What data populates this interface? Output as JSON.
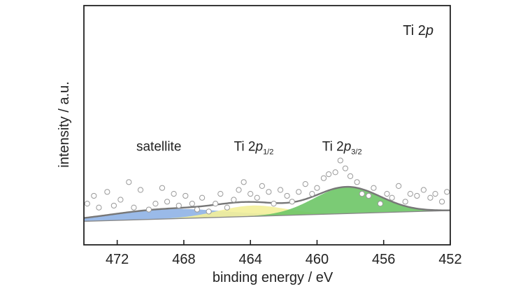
{
  "chart_data": {
    "type": "scatter",
    "title": "Ti 2p",
    "title_parts": {
      "main": "Ti 2",
      "italic": "p"
    },
    "xlabel": "binding energy / eV",
    "ylabel": "intensity / a.u.",
    "xlim": [
      474,
      452
    ],
    "x_reversed": true,
    "ylim": [
      -1.2,
      11
    ],
    "xticks": [
      472,
      468,
      464,
      460,
      456,
      452
    ],
    "annotations": [
      {
        "id": "satellite",
        "text": "satellite",
        "x": 469.5,
        "y": 3.6
      },
      {
        "id": "ti2p12",
        "main": "Ti 2",
        "italic": "p",
        "sub": "1/2",
        "x": 463.8,
        "y": 3.6
      },
      {
        "id": "ti2p32",
        "main": "Ti 2",
        "italic": "p",
        "sub": "3/2",
        "x": 458.5,
        "y": 3.6
      }
    ],
    "baseline": {
      "x": [
        474,
        452
      ],
      "y": [
        0,
        0.55
      ]
    },
    "components": [
      {
        "name": "satellite",
        "color": "#8fb3e6",
        "center": 469.0,
        "height": 0.5,
        "width": 3.4
      },
      {
        "name": "Ti 2p1/2",
        "color": "#f3ef99",
        "center": 463.9,
        "height": 0.55,
        "width": 2.0
      },
      {
        "name": "Ti 2p3/2",
        "color": "#6dc566",
        "center": 458.2,
        "height": 1.35,
        "width": 2.0
      }
    ],
    "envelope_color": "#777777",
    "points": {
      "x": [
        473.8,
        473.4,
        473.1,
        472.6,
        472.2,
        471.8,
        471.3,
        471.0,
        470.6,
        470.1,
        469.7,
        469.3,
        469.0,
        468.6,
        468.3,
        467.9,
        467.5,
        467.2,
        466.9,
        466.5,
        466.1,
        465.8,
        465.4,
        465.0,
        464.7,
        464.4,
        464.0,
        463.6,
        463.3,
        462.9,
        462.6,
        462.2,
        461.8,
        461.5,
        461.1,
        460.7,
        460.3,
        460.0,
        459.6,
        459.3,
        458.9,
        458.6,
        458.3,
        458.0,
        457.6,
        457.3,
        456.9,
        456.6,
        456.2,
        455.8,
        455.5,
        455.1,
        454.7,
        454.4,
        454.0,
        453.6,
        453.2,
        452.9,
        452.5,
        452.2
      ],
      "y": [
        0.9,
        1.3,
        0.7,
        1.5,
        0.8,
        1.1,
        2.0,
        0.7,
        1.6,
        0.6,
        0.9,
        1.7,
        1.0,
        1.4,
        0.8,
        1.3,
        0.9,
        0.6,
        1.2,
        0.5,
        0.9,
        1.4,
        0.7,
        1.1,
        1.6,
        2.0,
        1.4,
        1.2,
        1.8,
        1.5,
        0.9,
        1.6,
        1.3,
        1.0,
        1.5,
        1.9,
        1.4,
        1.7,
        2.2,
        2.4,
        2.5,
        3.1,
        2.7,
        2.3,
        2.0,
        1.4,
        1.3,
        1.7,
        0.9,
        1.4,
        1.2,
        1.8,
        1.0,
        1.4,
        1.3,
        1.6,
        1.2,
        1.4,
        1.0,
        1.5
      ]
    }
  }
}
